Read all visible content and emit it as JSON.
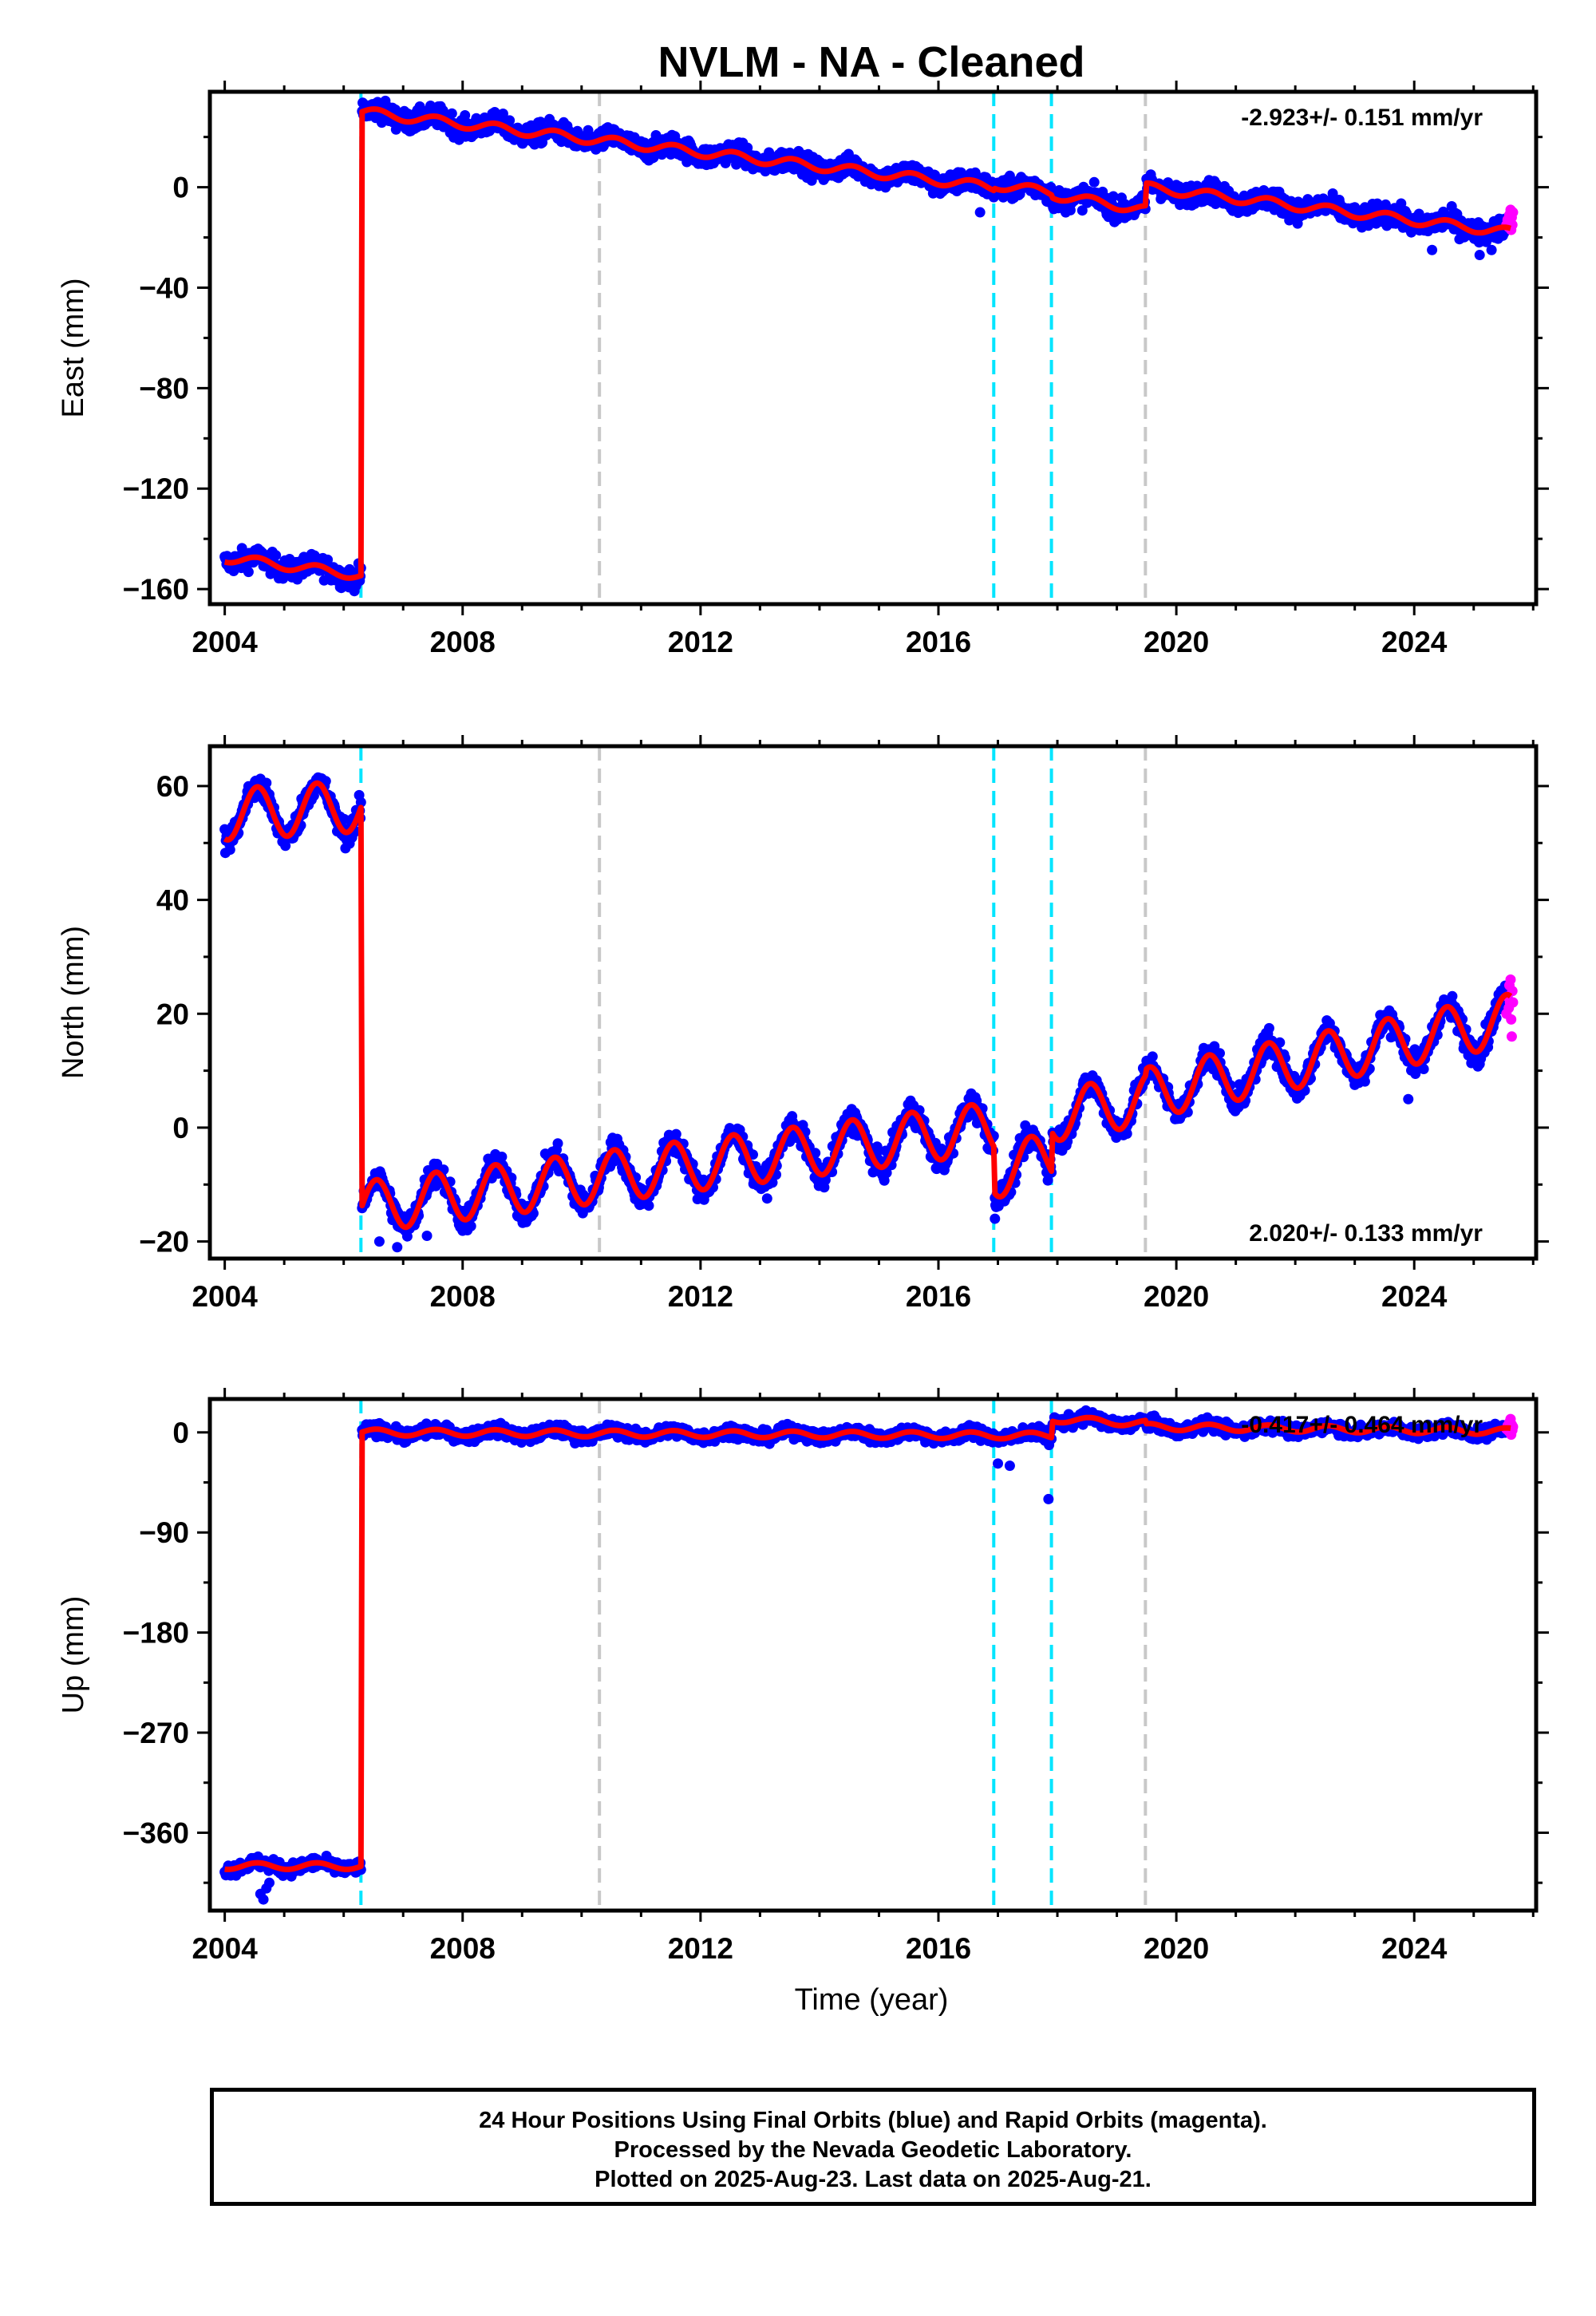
{
  "chart_data": {
    "title": "NVLM  - NA - Cleaned",
    "xlabel": "Time (year)",
    "xlim": [
      2003.75,
      2026.05
    ],
    "xticks": [
      2004,
      2008,
      2012,
      2016,
      2020,
      2024
    ],
    "xtick_labels": [
      "2004",
      "2008",
      "2012",
      "2016",
      "2020",
      "2024"
    ],
    "equipment_change_epochs": [
      2006.29,
      2016.93,
      2017.9
    ],
    "other_event_epochs": [
      2010.3,
      2019.48
    ],
    "colors": {
      "final_orbits": "#0000ff",
      "rapid_orbits": "#ff00ff",
      "model_fit": "#ff0000",
      "equipment_change": "#00e5ff",
      "other_event": "#c8c8c8"
    },
    "panels": [
      {
        "name": "East",
        "type": "scatter",
        "ylabel": "East (mm)",
        "ylim": [
          -166,
          38
        ],
        "yticks": [
          -160,
          -120,
          -80,
          -40,
          0
        ],
        "ytick_labels": [
          "−160",
          "−120",
          "−80",
          "−40",
          "0"
        ],
        "rate_label": "-2.923+/- 0.151 mm/yr",
        "rate_position": "top-right",
        "segments": [
          {
            "start": 2004.0,
            "end": 2006.29,
            "start_value": -147.5,
            "end_value": -154.5
          },
          {
            "start": 2006.29,
            "end": 2016.93,
            "start_value": 30.0,
            "end_value": 0.0
          },
          {
            "start": 2016.93,
            "end": 2017.9,
            "start_value": 1.0,
            "end_value": -2.0
          },
          {
            "start": 2017.9,
            "end": 2019.48,
            "start_value": -3.0,
            "end_value": -9.0
          },
          {
            "start": 2019.48,
            "end": 2025.62,
            "start_value": 0.0,
            "end_value": -18.0
          }
        ],
        "seasonal_amplitude": 1.8,
        "scatter": 3.0,
        "outliers": [
          [
            2016.7,
            -10
          ],
          [
            2024.3,
            -25
          ],
          [
            2025.1,
            -27
          ],
          [
            2025.3,
            -25
          ]
        ],
        "rapid_orbits": [
          [
            2025.55,
            -15
          ],
          [
            2025.57,
            -13
          ],
          [
            2025.59,
            -16
          ],
          [
            2025.6,
            -11
          ],
          [
            2025.61,
            -14
          ],
          [
            2025.62,
            -9
          ],
          [
            2025.63,
            -17
          ],
          [
            2025.64,
            -12
          ],
          [
            2025.65,
            -15
          ],
          [
            2025.66,
            -10
          ]
        ]
      },
      {
        "name": "North",
        "type": "scatter",
        "ylabel": "North (mm)",
        "ylim": [
          -23,
          67
        ],
        "yticks": [
          -20,
          0,
          20,
          40,
          60
        ],
        "ytick_labels": [
          "−20",
          "0",
          "20",
          "40",
          "60"
        ],
        "rate_label": "2.020+/- 0.133 mm/yr",
        "rate_position": "bottom-right",
        "segments": [
          {
            "start": 2004.0,
            "end": 2006.29,
            "start_value": 55.0,
            "end_value": 56.5
          },
          {
            "start": 2006.29,
            "end": 2016.93,
            "start_value": -14.0,
            "end_value": 0.0
          },
          {
            "start": 2016.93,
            "end": 2017.9,
            "start_value": -8.0,
            "end_value": -5.0
          },
          {
            "start": 2017.9,
            "end": 2019.48,
            "start_value": 2.0,
            "end_value": 5.0
          },
          {
            "start": 2019.48,
            "end": 2025.62,
            "start_value": 6.0,
            "end_value": 19.0
          }
        ],
        "seasonal_amplitude": 4.5,
        "scatter": 1.6,
        "outliers": [
          [
            2006.6,
            -20
          ],
          [
            2006.9,
            -21
          ],
          [
            2007.4,
            -19
          ],
          [
            2016.95,
            -16
          ],
          [
            2023.9,
            5
          ]
        ],
        "rapid_orbits": [
          [
            2025.55,
            20
          ],
          [
            2025.57,
            23
          ],
          [
            2025.59,
            21
          ],
          [
            2025.6,
            25
          ],
          [
            2025.61,
            22
          ],
          [
            2025.62,
            26
          ],
          [
            2025.63,
            19
          ],
          [
            2025.64,
            16
          ],
          [
            2025.65,
            24
          ],
          [
            2025.66,
            22
          ]
        ]
      },
      {
        "name": "Up",
        "type": "scatter",
        "ylabel": "Up (mm)",
        "ylim": [
          -430,
          30
        ],
        "yticks": [
          -360,
          -270,
          -180,
          -90,
          0
        ],
        "ytick_labels": [
          "−360",
          "−270",
          "−180",
          "−90",
          "0"
        ],
        "rate_label": "-0.417+/- 0.464 mm/yr",
        "rate_position": "top-right",
        "segments": [
          {
            "start": 2004.0,
            "end": 2006.29,
            "start_value": -390.0,
            "end_value": -390.0
          },
          {
            "start": 2006.29,
            "end": 2017.9,
            "start_value": 0.0,
            "end_value": -3.0
          },
          {
            "start": 2017.9,
            "end": 2019.48,
            "start_value": 12.0,
            "end_value": 8.0
          },
          {
            "start": 2019.48,
            "end": 2025.62,
            "start_value": 5.0,
            "end_value": 1.0
          }
        ],
        "seasonal_amplitude": 3.0,
        "scatter": 4.0,
        "outliers": [
          [
            2004.6,
            -415
          ],
          [
            2004.65,
            -420
          ],
          [
            2004.7,
            -410
          ],
          [
            2004.75,
            -405
          ],
          [
            2017.0,
            -28
          ],
          [
            2017.2,
            -30
          ],
          [
            2017.85,
            -60
          ]
        ],
        "rapid_orbits": [
          [
            2025.55,
            3
          ],
          [
            2025.57,
            6
          ],
          [
            2025.59,
            1
          ],
          [
            2025.6,
            9
          ],
          [
            2025.61,
            4
          ],
          [
            2025.62,
            12
          ],
          [
            2025.63,
            -2
          ],
          [
            2025.64,
            7
          ],
          [
            2025.65,
            2
          ],
          [
            2025.66,
            5
          ]
        ]
      }
    ]
  },
  "footer": {
    "line1": "24 Hour Positions Using Final Orbits (blue) and Rapid Orbits (magenta).",
    "line2": "Processed by the Nevada Geodetic Laboratory.",
    "line3": "Plotted on 2025-Aug-23. Last data on 2025-Aug-21."
  }
}
